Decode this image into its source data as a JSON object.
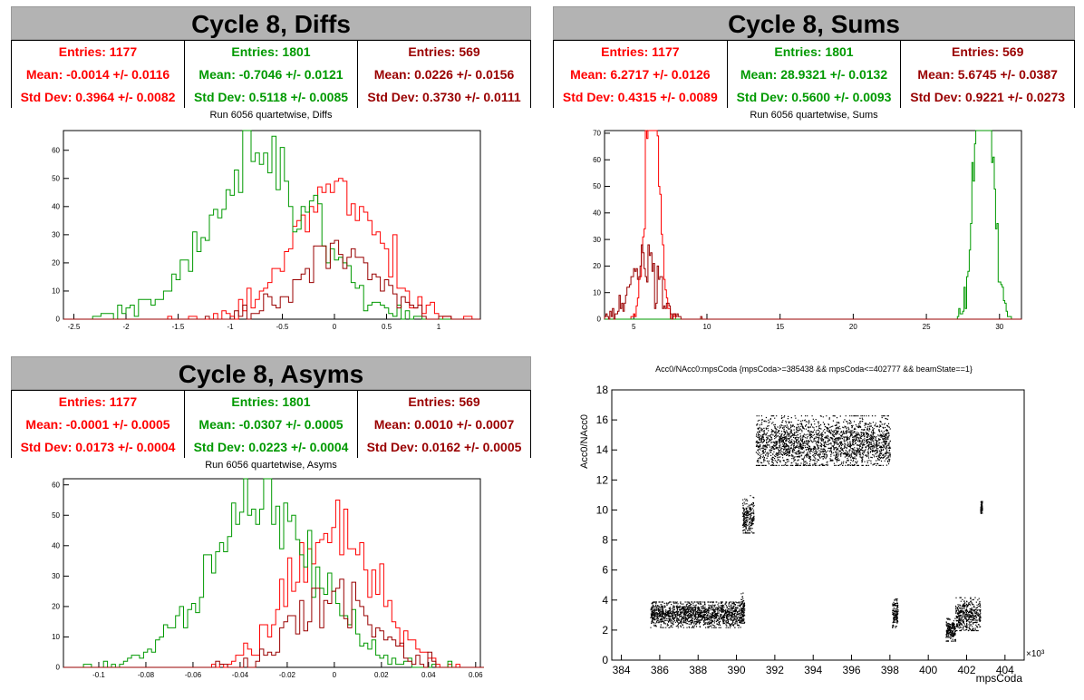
{
  "colors": {
    "red": "#ff0000",
    "green": "#009900",
    "darkred": "#990000",
    "banner": "#b3b3b3"
  },
  "panels": {
    "diffs": {
      "banner": "Cycle 8, Diffs",
      "subtitle": "Run 6056 quartetwise, Diffs",
      "stats": [
        {
          "entries": "Entries: 1177",
          "mean": "Mean: -0.0014 +/- 0.0116",
          "std": "Std Dev: 0.3964 +/- 0.0082"
        },
        {
          "entries": "Entries: 1801",
          "mean": "Mean: -0.7046 +/- 0.0121",
          "std": "Std Dev: 0.5118 +/- 0.0085"
        },
        {
          "entries": "Entries: 569",
          "mean": "Mean: 0.0226 +/- 0.0156",
          "std": "Std Dev: 0.3730 +/- 0.0111"
        }
      ]
    },
    "sums": {
      "banner": "Cycle 8, Sums",
      "subtitle": "Run 6056 quartetwise, Sums",
      "stats": [
        {
          "entries": "Entries: 1177",
          "mean": "Mean: 6.2717 +/- 0.0126",
          "std": "Std Dev: 0.4315 +/- 0.0089"
        },
        {
          "entries": "Entries: 1801",
          "mean": "Mean: 28.9321 +/- 0.0132",
          "std": "Std Dev: 0.5600 +/- 0.0093"
        },
        {
          "entries": "Entries: 569",
          "mean": "Mean: 5.6745 +/- 0.0387",
          "std": "Std Dev: 0.9221 +/- 0.0273"
        }
      ]
    },
    "asyms": {
      "banner": "Cycle 8, Asyms",
      "subtitle": "Run 6056 quartetwise, Asyms",
      "stats": [
        {
          "entries": "Entries: 1177",
          "mean": "Mean: -0.0001 +/- 0.0005",
          "std": "Std Dev: 0.0173 +/- 0.0004"
        },
        {
          "entries": "Entries: 1801",
          "mean": "Mean: -0.0307 +/- 0.0005",
          "std": "Std Dev: 0.0223 +/- 0.0004"
        },
        {
          "entries": "Entries: 569",
          "mean": "Mean: 0.0010 +/- 0.0007",
          "std": "Std Dev: 0.0162 +/- 0.0005"
        }
      ]
    },
    "scatter": {
      "title": "Acc0/NAcc0:mpsCoda {mpsCoda>=385438 && mpsCoda<=402777 && beamState==1}"
    }
  },
  "chart_data": [
    {
      "type": "bar",
      "title": "Run 6056 quartetwise, Diffs",
      "xlim": [
        -2.6,
        1.4
      ],
      "ylim": [
        0,
        67
      ],
      "xticks": [
        -2.5,
        -2,
        -1.5,
        -1,
        -0.5,
        0,
        0.5,
        1
      ],
      "xtick_labels": [
        "-2.5",
        "-2",
        "-1.5",
        "-1",
        "-0.5",
        "0",
        "0.5",
        "1"
      ],
      "yticks": [
        0,
        10,
        20,
        30,
        40,
        50,
        60
      ],
      "series": [
        {
          "name": "Entries: 1177",
          "color": "red",
          "mean": -0.0014,
          "std": 0.3964,
          "entries": 1177
        },
        {
          "name": "Entries: 1801",
          "color": "green",
          "mean": -0.7046,
          "std": 0.5118,
          "entries": 1801
        },
        {
          "name": "Entries: 569",
          "color": "darkred",
          "mean": 0.0226,
          "std": 0.373,
          "entries": 569
        }
      ],
      "bin_width": 0.04
    },
    {
      "type": "bar",
      "title": "Run 6056 quartetwise, Sums",
      "xlim": [
        3,
        31.5
      ],
      "ylim": [
        0,
        71
      ],
      "xticks": [
        5,
        10,
        15,
        20,
        25,
        30
      ],
      "xtick_labels": [
        "5",
        "10",
        "15",
        "20",
        "25",
        "30"
      ],
      "yticks": [
        0,
        10,
        20,
        30,
        40,
        50,
        60,
        70
      ],
      "series": [
        {
          "name": "Entries: 1177",
          "color": "red",
          "mean": 6.2717,
          "std": 0.4315,
          "entries": 1177
        },
        {
          "name": "Entries: 1801",
          "color": "green",
          "mean": 28.9321,
          "std": 0.56,
          "entries": 1801
        },
        {
          "name": "Entries: 569",
          "color": "darkred",
          "mean": 5.6745,
          "std": 0.9221,
          "entries": 569
        }
      ],
      "bin_width": 0.09
    },
    {
      "type": "bar",
      "title": "Run 6056 quartetwise, Asyms",
      "xlim": [
        -0.115,
        0.062
      ],
      "ylim": [
        0,
        62
      ],
      "xticks": [
        -0.1,
        -0.08,
        -0.06,
        -0.04,
        -0.02,
        0,
        0.02,
        0.04,
        0.06
      ],
      "xtick_labels": [
        "-0.1",
        "-0.08",
        "-0.06",
        "-0.04",
        "-0.02",
        "0",
        "0.02",
        "0.04",
        "0.06"
      ],
      "yticks": [
        0,
        10,
        20,
        30,
        40,
        50,
        60
      ],
      "series": [
        {
          "name": "Entries: 1177",
          "color": "red",
          "mean": -0.0001,
          "std": 0.0173,
          "entries": 1177
        },
        {
          "name": "Entries: 1801",
          "color": "green",
          "mean": -0.0307,
          "std": 0.0223,
          "entries": 1801
        },
        {
          "name": "Entries: 569",
          "color": "darkred",
          "mean": 0.001,
          "std": 0.0162,
          "entries": 569
        }
      ],
      "bin_width": 0.0017
    },
    {
      "type": "scatter",
      "title": "Acc0/NAcc0:mpsCoda {mpsCoda>=385438 && mpsCoda<=402777 && beamState==1}",
      "xlabel": "mpsCoda",
      "ylabel": "Acc0/NAcc0",
      "x_multiplier_label": "×10³",
      "xlim": [
        383.5,
        405
      ],
      "ylim": [
        0,
        18
      ],
      "xticks": [
        384,
        386,
        388,
        390,
        392,
        394,
        396,
        398,
        400,
        402,
        404
      ],
      "yticks": [
        0,
        2,
        4,
        6,
        8,
        10,
        12,
        14,
        16,
        18
      ],
      "clusters": [
        {
          "x": [
            385.5,
            390.2
          ],
          "y": [
            2.2,
            3.9
          ],
          "center": 3.1
        },
        {
          "x": [
            390.2,
            390.4
          ],
          "y": [
            2.5,
            4.5
          ],
          "center": 3.3
        },
        {
          "x": [
            390.3,
            390.9
          ],
          "y": [
            8.5,
            11.0
          ],
          "center": 9.5
        },
        {
          "x": [
            391.0,
            398.0
          ],
          "y": [
            13.0,
            16.3
          ],
          "center": 14.5
        },
        {
          "x": [
            398.1,
            398.4
          ],
          "y": [
            2.2,
            4.1
          ],
          "center": 3.1
        },
        {
          "x": [
            400.9,
            401.4
          ],
          "y": [
            1.3,
            2.8
          ],
          "center": 2.0
        },
        {
          "x": [
            401.4,
            402.7
          ],
          "y": [
            2.0,
            4.2
          ],
          "center": 3.0
        },
        {
          "x": [
            402.7,
            402.8
          ],
          "y": [
            9.8,
            10.6
          ],
          "center": 10.2
        }
      ]
    }
  ]
}
